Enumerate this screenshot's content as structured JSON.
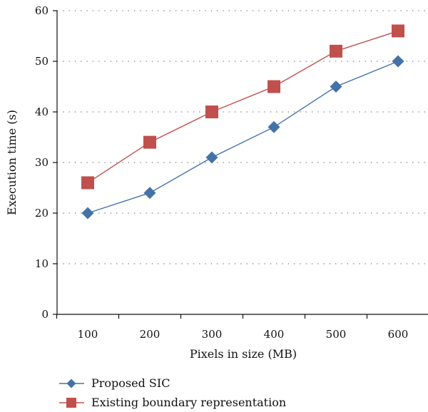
{
  "chart_data": {
    "type": "line",
    "title": "",
    "xlabel": "Pixels in size (MB)",
    "ylabel": "Execution time (s)",
    "categories": [
      "100",
      "200",
      "300",
      "400",
      "500",
      "600"
    ],
    "x": [
      100,
      200,
      300,
      400,
      500,
      600
    ],
    "ylim": [
      0,
      60
    ],
    "yticks": [
      "0",
      "10",
      "20",
      "30",
      "40",
      "50",
      "60"
    ],
    "grid": "horizontal dotted",
    "legend_position": "bottom-left",
    "series": [
      {
        "name": "Proposed SIC",
        "marker": "diamond",
        "color": "#4472A8",
        "values": [
          20,
          24,
          31,
          37,
          45,
          50
        ]
      },
      {
        "name": "Existing boundary representation",
        "marker": "square",
        "color": "#C0504D",
        "values": [
          26,
          34,
          40,
          45,
          52,
          56
        ]
      }
    ]
  }
}
